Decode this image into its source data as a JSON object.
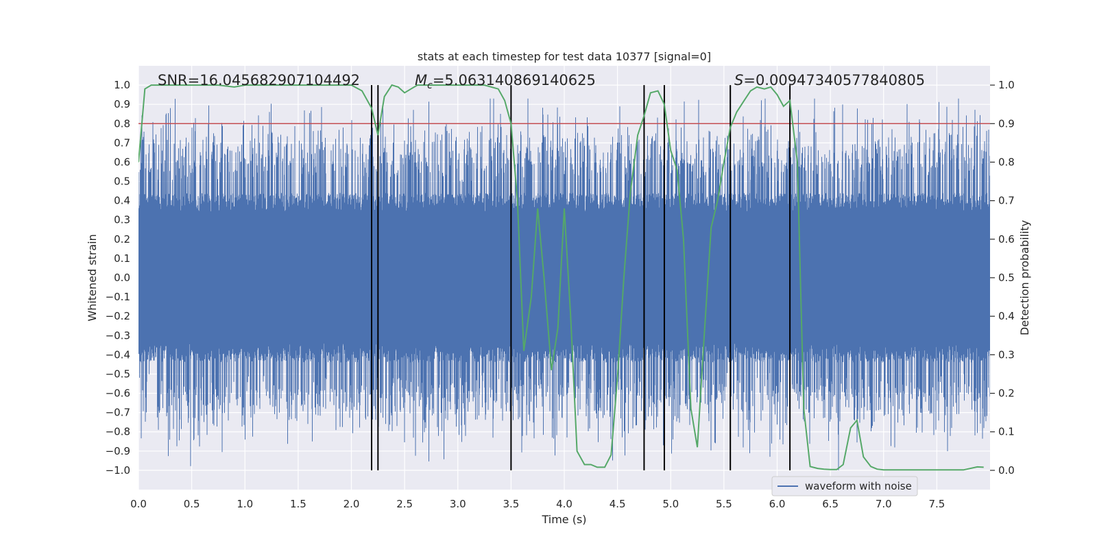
{
  "chart_data": {
    "type": "line",
    "title": "stats at each timestep for test data 10377 [signal=0]",
    "xlabel": "Time (s)",
    "ylabel_left": "Whitened strain",
    "ylabel_right": "Detection probability",
    "xlim": [
      0.0,
      8.0
    ],
    "ylim_left": [
      -1.1,
      1.1
    ],
    "ylim_right": [
      -0.05,
      1.05
    ],
    "x_ticks": [
      "0.0",
      "0.5",
      "1.0",
      "1.5",
      "2.0",
      "2.5",
      "3.0",
      "3.5",
      "4.0",
      "4.5",
      "5.0",
      "5.5",
      "6.0",
      "6.5",
      "7.0",
      "7.5"
    ],
    "y_left_ticks": [
      "1.0",
      "0.9",
      "0.8",
      "0.7",
      "0.6",
      "0.5",
      "0.4",
      "0.3",
      "0.2",
      "0.1",
      "0.0",
      "-0.1",
      "-0.2",
      "-0.3",
      "-0.4",
      "-0.5",
      "-0.6",
      "-0.7",
      "-0.8",
      "-0.9",
      "-1.0"
    ],
    "y_right_ticks": [
      "1.0",
      "0.9",
      "0.8",
      "0.7",
      "0.6",
      "0.5",
      "0.4",
      "0.3",
      "0.2",
      "0.1",
      "0.0"
    ],
    "grid": true,
    "legend_position": "bottom-right",
    "annotations": {
      "snr": "SNR=16.045682907104492",
      "mc_symbol": "M",
      "mc_sub": "c",
      "mc_value": "=5.063140869140625",
      "s_symbol": "S",
      "s_value": "=0.00947340577840805"
    },
    "threshold": 0.9,
    "vertical_lines": [
      2.19,
      2.25,
      3.5,
      4.75,
      4.94,
      5.56,
      6.12
    ],
    "series": [
      {
        "name": "waveform with noise",
        "axis": "left",
        "color": "#4c72b0",
        "sample_rate": 2048,
        "approx_abs_amplitude": 0.4,
        "approx_peak_range": [
          -1.0,
          0.93
        ]
      },
      {
        "axis": "right",
        "color": "#55a868",
        "x": [
          0.0,
          0.06,
          0.12,
          0.25,
          0.5,
          0.75,
          0.9,
          1.0,
          1.25,
          1.5,
          1.75,
          2.0,
          2.1,
          2.19,
          2.25,
          2.31,
          2.38,
          2.44,
          2.5,
          2.56,
          2.62,
          2.75,
          3.0,
          3.25,
          3.38,
          3.44,
          3.5,
          3.56,
          3.62,
          3.69,
          3.75,
          3.81,
          3.88,
          3.94,
          4.0,
          4.06,
          4.12,
          4.19,
          4.25,
          4.31,
          4.38,
          4.44,
          4.5,
          4.56,
          4.62,
          4.69,
          4.75,
          4.81,
          4.88,
          4.94,
          5.0,
          5.06,
          5.12,
          5.19,
          5.25,
          5.31,
          5.38,
          5.44,
          5.5,
          5.56,
          5.62,
          5.69,
          5.75,
          5.81,
          5.88,
          5.94,
          6.0,
          6.06,
          6.12,
          6.19,
          6.25,
          6.31,
          6.38,
          6.44,
          6.5,
          6.56,
          6.62,
          6.69,
          6.75,
          6.81,
          6.88,
          6.94,
          7.0,
          7.25,
          7.5,
          7.75,
          7.88,
          7.94
        ],
        "values": [
          0.8,
          0.99,
          1.0,
          1.0,
          1.0,
          1.0,
          0.995,
          1.0,
          1.0,
          1.0,
          1.0,
          1.0,
          0.985,
          0.94,
          0.87,
          0.97,
          1.0,
          0.995,
          0.98,
          0.99,
          1.0,
          1.0,
          1.0,
          1.0,
          0.99,
          0.96,
          0.9,
          0.7,
          0.31,
          0.45,
          0.68,
          0.5,
          0.26,
          0.37,
          0.68,
          0.4,
          0.05,
          0.015,
          0.015,
          0.008,
          0.008,
          0.04,
          0.24,
          0.5,
          0.72,
          0.87,
          0.92,
          0.98,
          0.985,
          0.95,
          0.83,
          0.78,
          0.6,
          0.16,
          0.06,
          0.33,
          0.63,
          0.7,
          0.8,
          0.89,
          0.93,
          0.96,
          0.985,
          0.995,
          0.99,
          0.995,
          0.975,
          0.945,
          0.96,
          0.8,
          0.16,
          0.01,
          0.005,
          0.003,
          0.002,
          0.002,
          0.015,
          0.11,
          0.13,
          0.035,
          0.01,
          0.003,
          0.001,
          0.001,
          0.001,
          0.001,
          0.009,
          0.008
        ]
      }
    ]
  },
  "colors": {
    "background": "#ffffff",
    "plot_area": "#eaeaf2",
    "grid": "#ffffff",
    "waveform": "#4c72b0",
    "probability": "#55a868",
    "threshold": "#c44e52",
    "vertical_lines": "#000000",
    "text": "#262626"
  }
}
